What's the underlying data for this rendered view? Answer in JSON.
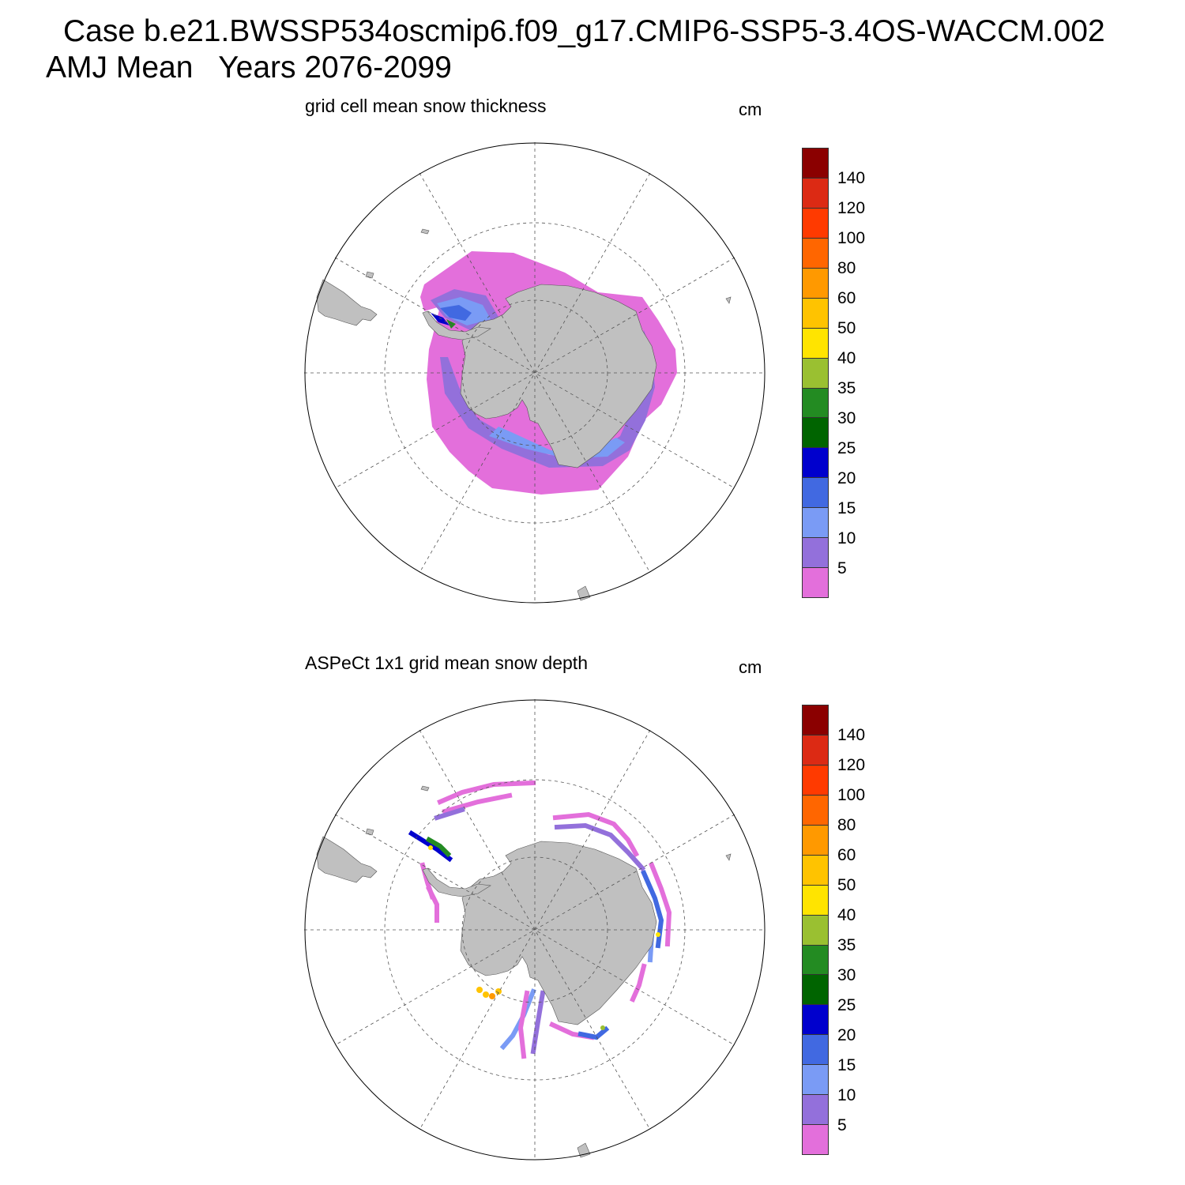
{
  "header": {
    "case_title": "Case b.e21.BWSSP534oscmip6.f09_g17.CMIP6-SSP5-3.4OS-WACCM.002",
    "season_title": "AMJ Mean   Years 2076-2099"
  },
  "panels": [
    {
      "title": "grid cell mean snow thickness",
      "units": "cm"
    },
    {
      "title": "ASPeCt 1x1 grid mean snow depth",
      "units": "cm"
    }
  ],
  "colorbar": {
    "labels": [
      "140",
      "120",
      "100",
      "80",
      "60",
      "50",
      "40",
      "35",
      "30",
      "25",
      "20",
      "15",
      "10",
      "5"
    ],
    "colors": [
      "#8b0000",
      "#dc2a14",
      "#ff3a00",
      "#ff6600",
      "#ff9900",
      "#ffc300",
      "#ffe400",
      "#9ac031",
      "#238b22",
      "#006400",
      "#0000cd",
      "#4169e1",
      "#7a9bf5",
      "#9370db",
      "#e36fdb"
    ]
  },
  "map": {
    "land_color": "#c0c0c0",
    "grid_color": "#555555"
  }
}
